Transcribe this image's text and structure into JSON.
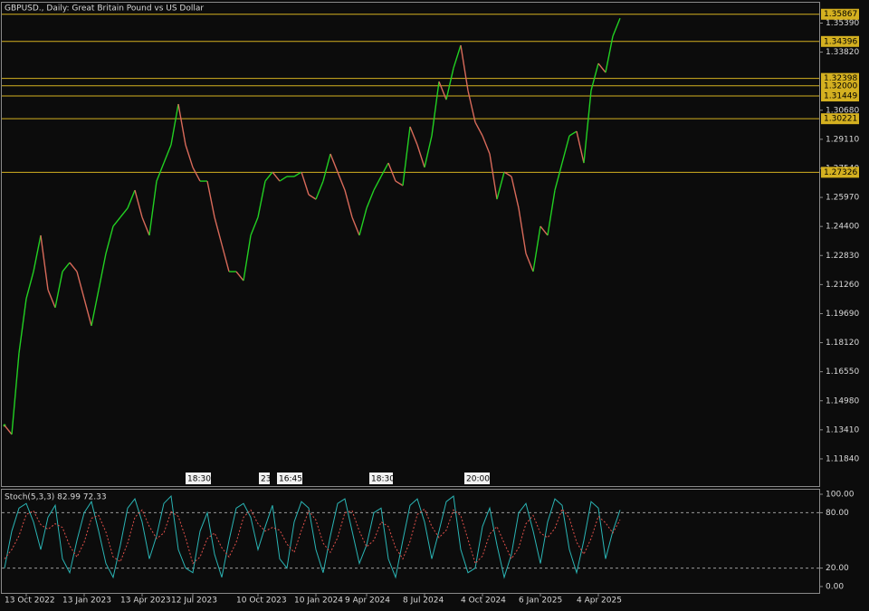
{
  "chart_data": [
    {
      "type": "line",
      "title": "GBPUSD., Daily:  Great Britain Pound vs US Dollar",
      "categories": [
        null,
        null,
        null,
        "13 Oct 2022",
        null,
        null,
        null,
        null,
        null,
        null,
        null,
        "13 Jan 2023",
        null,
        null,
        null,
        null,
        null,
        null,
        null,
        "13 Apr 2023",
        null,
        null,
        null,
        null,
        null,
        null,
        "12 Jul 2023",
        null,
        null,
        null,
        null,
        null,
        null,
        null,
        null,
        "10 Oct 2023",
        null,
        null,
        null,
        null,
        null,
        null,
        null,
        "10 Jan 2024",
        null,
        null,
        null,
        null,
        null,
        null,
        "9 Apr 2024",
        null,
        null,
        null,
        null,
        null,
        null,
        null,
        "8 Jul 2024",
        null,
        null,
        null,
        null,
        null,
        null,
        null,
        "4 Oct 2024",
        null,
        null,
        null,
        null,
        null,
        null,
        null,
        "6 Jan 2025",
        null,
        null,
        null,
        null,
        null,
        null,
        null,
        "4 Apr 2025",
        null,
        null,
        null
      ],
      "values": [
        1.1365,
        1.1316,
        1.1756,
        1.205,
        1.2196,
        1.2392,
        1.2098,
        1.2001,
        1.2196,
        1.2245,
        1.2196,
        1.205,
        1.1903,
        1.2098,
        1.2294,
        1.2441,
        1.249,
        1.2539,
        1.2636,
        1.249,
        1.2392,
        1.2685,
        1.2783,
        1.2881,
        1.3101,
        1.2881,
        1.2759,
        1.2685,
        1.2685,
        1.249,
        1.2343,
        1.2196,
        1.2196,
        1.2147,
        1.2392,
        1.249,
        1.2685,
        1.2734,
        1.2685,
        1.271,
        1.271,
        1.2734,
        1.2612,
        1.2587,
        1.2685,
        1.2832,
        1.2734,
        1.2636,
        1.249,
        1.2392,
        1.2539,
        1.2636,
        1.271,
        1.2783,
        1.2685,
        1.2661,
        1.2979,
        1.2881,
        1.2759,
        1.293,
        1.3223,
        1.3125,
        1.3296,
        1.3419,
        1.3174,
        1.3003,
        1.293,
        1.2832,
        1.2587,
        1.2734,
        1.271,
        1.2539,
        1.2294,
        1.2196,
        1.2441,
        1.2392,
        1.2636,
        1.2783,
        1.293,
        1.2954,
        1.2783,
        1.3174,
        1.3321,
        1.3272,
        1.3468,
        1.3565
      ],
      "up_color": "#22d022",
      "down_color": "#d86a5a",
      "ylim": [
        1.1037,
        1.3649
      ],
      "yticks": [
        {
          "value": 1.1184,
          "label": "1.11840"
        },
        {
          "value": 1.1341,
          "label": "1.13410"
        },
        {
          "value": 1.1498,
          "label": "1.14980"
        },
        {
          "value": 1.1655,
          "label": "1.16550"
        },
        {
          "value": 1.1812,
          "label": "1.18120"
        },
        {
          "value": 1.1969,
          "label": "1.19690"
        },
        {
          "value": 1.2126,
          "label": "1.21260"
        },
        {
          "value": 1.2283,
          "label": "1.22830"
        },
        {
          "value": 1.244,
          "label": "1.24400"
        },
        {
          "value": 1.2597,
          "label": "1.25970"
        },
        {
          "value": 1.2754,
          "label": "1.27540"
        },
        {
          "value": 1.2911,
          "label": "1.29110"
        },
        {
          "value": 1.3068,
          "label": "1.30680"
        },
        {
          "value": 1.3382,
          "label": "1.33820"
        },
        {
          "value": 1.3539,
          "label": "1.35390"
        }
      ],
      "levels": [
        1.35867,
        1.34396,
        1.32398,
        {
          "value": 1.32,
          "label": "1.32000"
        },
        1.31449,
        1.30221,
        1.27326
      ],
      "level_color": "#d4b020",
      "session_labels": [
        "18:30",
        "23",
        "16:45",
        "18:30",
        "20:00"
      ],
      "grid": false
    },
    {
      "type": "line",
      "title": "Stoch(5,3,3) 82.99 72.33",
      "series": [
        {
          "name": "Main",
          "color": "#2ab5b5",
          "values": [
            20,
            60,
            85,
            90,
            70,
            40,
            75,
            88,
            30,
            15,
            50,
            80,
            92,
            60,
            25,
            10,
            45,
            85,
            95,
            70,
            30,
            55,
            90,
            98,
            40,
            20,
            15,
            60,
            80,
            35,
            10,
            50,
            85,
            90,
            75,
            40,
            65,
            88,
            30,
            20,
            70,
            92,
            85,
            40,
            15,
            55,
            90,
            95,
            60,
            25,
            45,
            80,
            85,
            30,
            10,
            50,
            88,
            95,
            70,
            30,
            60,
            92,
            98,
            40,
            15,
            20,
            65,
            85,
            45,
            10,
            35,
            80,
            90,
            60,
            25,
            70,
            95,
            88,
            40,
            15,
            50,
            92,
            85,
            30,
            60,
            82.99
          ]
        },
        {
          "name": "Signal",
          "color": "#e0504a",
          "values": [
            30,
            40,
            55,
            78,
            82,
            67,
            62,
            68,
            64,
            44,
            32,
            48,
            74,
            77,
            59,
            32,
            27,
            47,
            75,
            83,
            65,
            52,
            58,
            81,
            76,
            53,
            25,
            32,
            52,
            58,
            42,
            32,
            48,
            75,
            83,
            68,
            60,
            64,
            61,
            46,
            37,
            61,
            82,
            72,
            47,
            37,
            53,
            80,
            82,
            60,
            43,
            50,
            70,
            65,
            42,
            30,
            49,
            78,
            84,
            65,
            53,
            61,
            83,
            77,
            51,
            25,
            33,
            57,
            65,
            47,
            30,
            42,
            68,
            77,
            58,
            53,
            63,
            84,
            74,
            48,
            35,
            52,
            76,
            69,
            58,
            72.33
          ]
        }
      ],
      "ylim": [
        -6.9,
        105.9
      ],
      "yticks": [
        {
          "value": 100,
          "label": "100.00"
        },
        {
          "value": 80,
          "label": "80.00"
        },
        {
          "value": 20,
          "label": "20.00"
        },
        {
          "value": 0,
          "label": "0.00"
        }
      ],
      "levels": [
        80,
        20
      ]
    }
  ]
}
